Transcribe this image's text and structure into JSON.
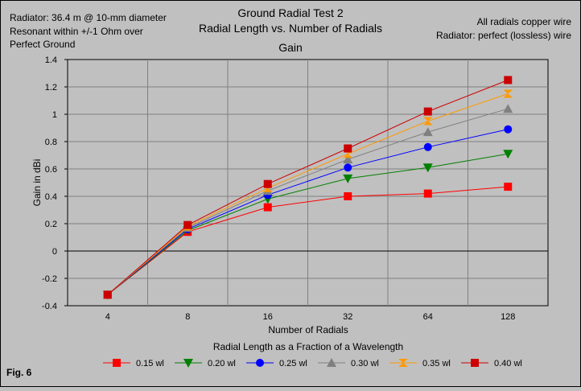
{
  "header": {
    "title_lines": [
      "Ground Radial Test 2",
      "Radial Length vs. Number of Radials",
      "Gain"
    ],
    "left_note_lines": [
      "Radiator: 36.4 m @ 10-mm diameter",
      "Resonant within +/-1 Ohm over",
      "Perfect Ground"
    ],
    "right_note_lines": [
      "All radials copper wire",
      "Radiator: perfect (lossless) wire"
    ]
  },
  "fig_label": "Fig. 6",
  "legend_title": "Radial Length as a Fraction of a Wavelength",
  "chart_data": {
    "type": "line",
    "title": "Ground Radial Test 2 / Radial Length vs. Number of Radials / Gain",
    "xlabel": "Number of Radials",
    "ylabel": "Gain in dBi",
    "categories": [
      "4",
      "8",
      "16",
      "32",
      "64",
      "128"
    ],
    "ylim": [
      -0.4,
      1.4
    ],
    "yticks": [
      -0.4,
      -0.2,
      0,
      0.2,
      0.4,
      0.6,
      0.8,
      1,
      1.2,
      1.4
    ],
    "ytick_labels": [
      "-0.4",
      "-0.2",
      "0",
      "0.2",
      "0.4",
      "0.6",
      "0.8",
      "1",
      "1.2",
      "1.4"
    ],
    "grid": true,
    "legend_position": "bottom",
    "series": [
      {
        "name": "0.15 wl",
        "color": "#ff0000",
        "marker": "square",
        "values": [
          -0.32,
          0.14,
          0.32,
          0.4,
          0.42,
          0.47
        ]
      },
      {
        "name": "0.20 wl",
        "color": "#008000",
        "marker": "triangle-down",
        "values": [
          -0.32,
          0.15,
          0.38,
          0.53,
          0.61,
          0.71
        ]
      },
      {
        "name": "0.25 wl",
        "color": "#0000ff",
        "marker": "circle",
        "values": [
          -0.32,
          0.16,
          0.41,
          0.61,
          0.76,
          0.89
        ]
      },
      {
        "name": "0.30 wl",
        "color": "#808080",
        "marker": "triangle-up",
        "values": [
          -0.32,
          0.17,
          0.44,
          0.67,
          0.87,
          1.04
        ]
      },
      {
        "name": "0.35 wl",
        "color": "#ff9900",
        "marker": "hourglass",
        "values": [
          -0.32,
          0.18,
          0.46,
          0.71,
          0.95,
          1.15
        ]
      },
      {
        "name": "0.40 wl",
        "color": "#cc0000",
        "marker": "square",
        "values": [
          -0.32,
          0.19,
          0.49,
          0.75,
          1.02,
          1.25
        ]
      }
    ]
  }
}
